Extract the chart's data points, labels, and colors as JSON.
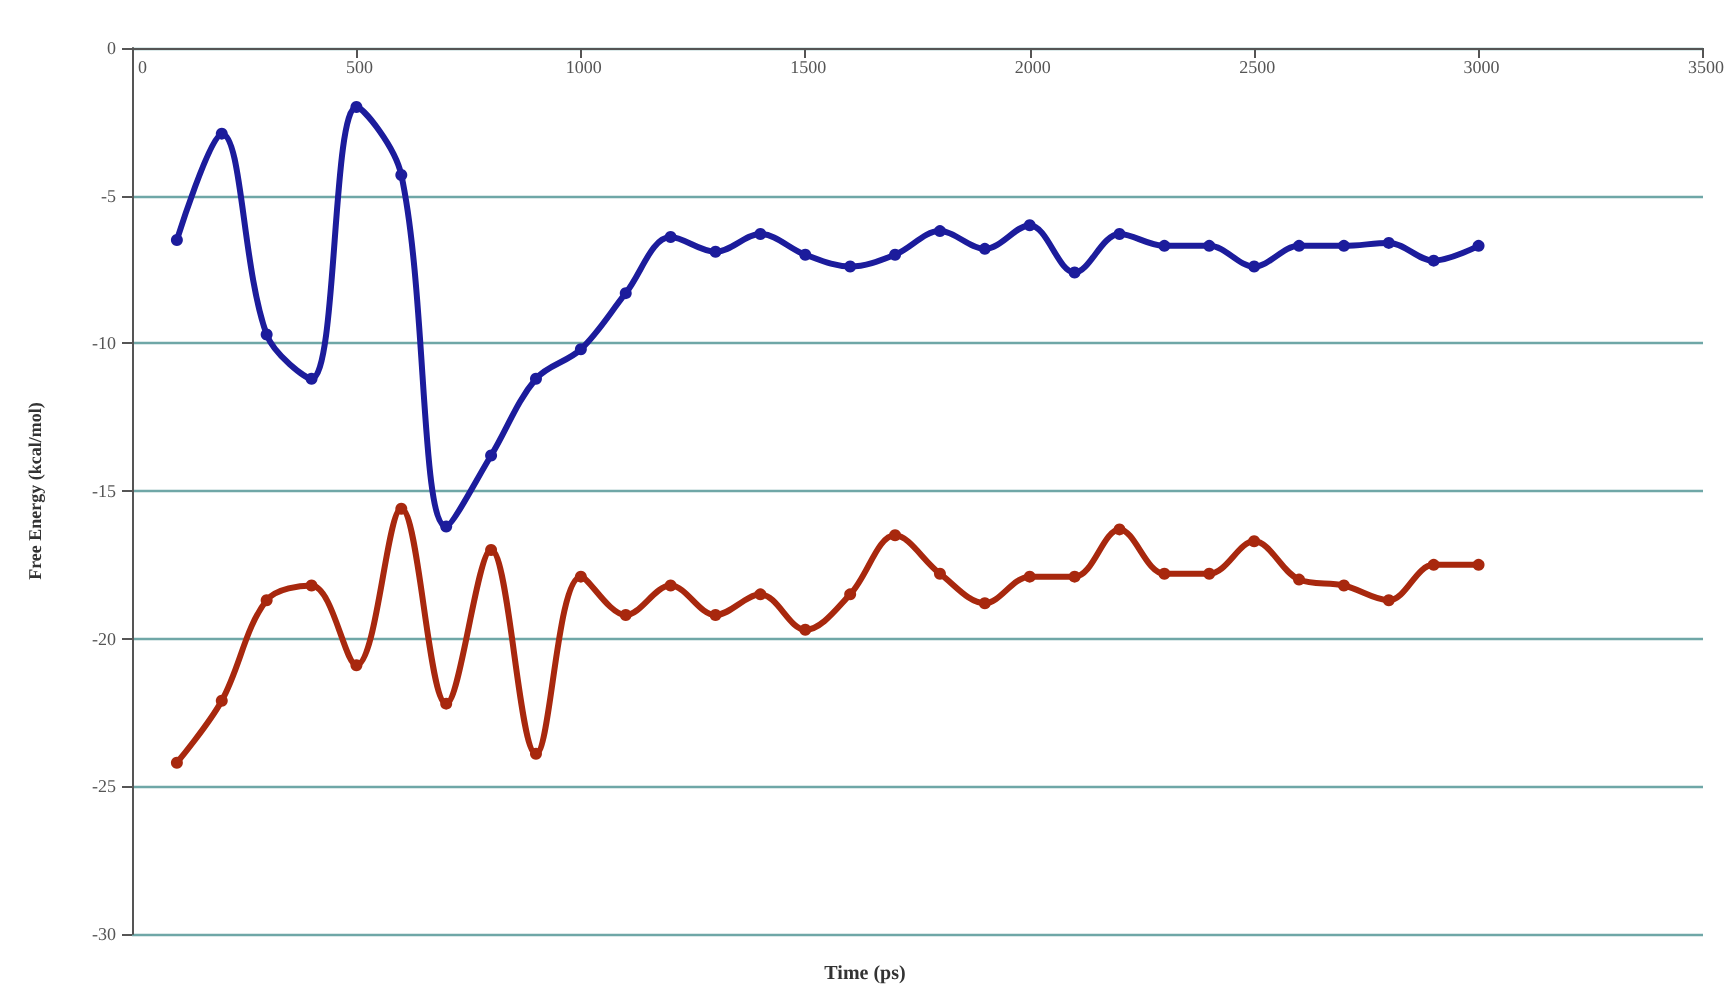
{
  "chart_data": {
    "type": "line",
    "xlabel": "Time (ps)",
    "ylabel": "Free Energy (kcal/mol)",
    "x": [
      100,
      200,
      300,
      400,
      500,
      600,
      700,
      800,
      900,
      1000,
      1100,
      1200,
      1300,
      1400,
      1500,
      1600,
      1700,
      1800,
      1900,
      2000,
      2100,
      2200,
      2300,
      2400,
      2500,
      2600,
      2700,
      2800,
      2900,
      3000
    ],
    "series": [
      {
        "color": "#1c1c9c",
        "values": [
          -6.5,
          -2.9,
          -9.7,
          -11.2,
          -2.0,
          -4.3,
          -16.2,
          -13.8,
          -11.2,
          -10.2,
          -8.3,
          -6.4,
          -6.9,
          -6.3,
          -7.0,
          -7.4,
          -7.0,
          -6.2,
          -6.8,
          -6.0,
          -7.6,
          -6.3,
          -6.7,
          -6.7,
          -7.4,
          -6.7,
          -6.7,
          -6.6,
          -7.2,
          -6.7
        ]
      },
      {
        "color": "#a8280e",
        "values": [
          -24.2,
          -22.1,
          -18.7,
          -18.2,
          -20.9,
          -15.6,
          -22.2,
          -17.0,
          -23.9,
          -17.9,
          -19.2,
          -18.2,
          -19.2,
          -18.5,
          -19.7,
          -18.5,
          -16.5,
          -17.8,
          -18.8,
          -17.9,
          -17.9,
          -16.3,
          -17.8,
          -17.8,
          -16.7,
          -18.0,
          -18.2,
          -18.7,
          -17.5,
          -17.5
        ]
      }
    ],
    "xlim": [
      0,
      3500
    ],
    "xticks": [
      0,
      500,
      1000,
      1500,
      2000,
      2500,
      3000,
      3500
    ],
    "ylim": [
      -30,
      0
    ],
    "yticks": [
      -30,
      -25,
      -20,
      -15,
      -10,
      -5,
      0
    ],
    "grid": "y",
    "marker": "circle",
    "line_style": "solid"
  }
}
